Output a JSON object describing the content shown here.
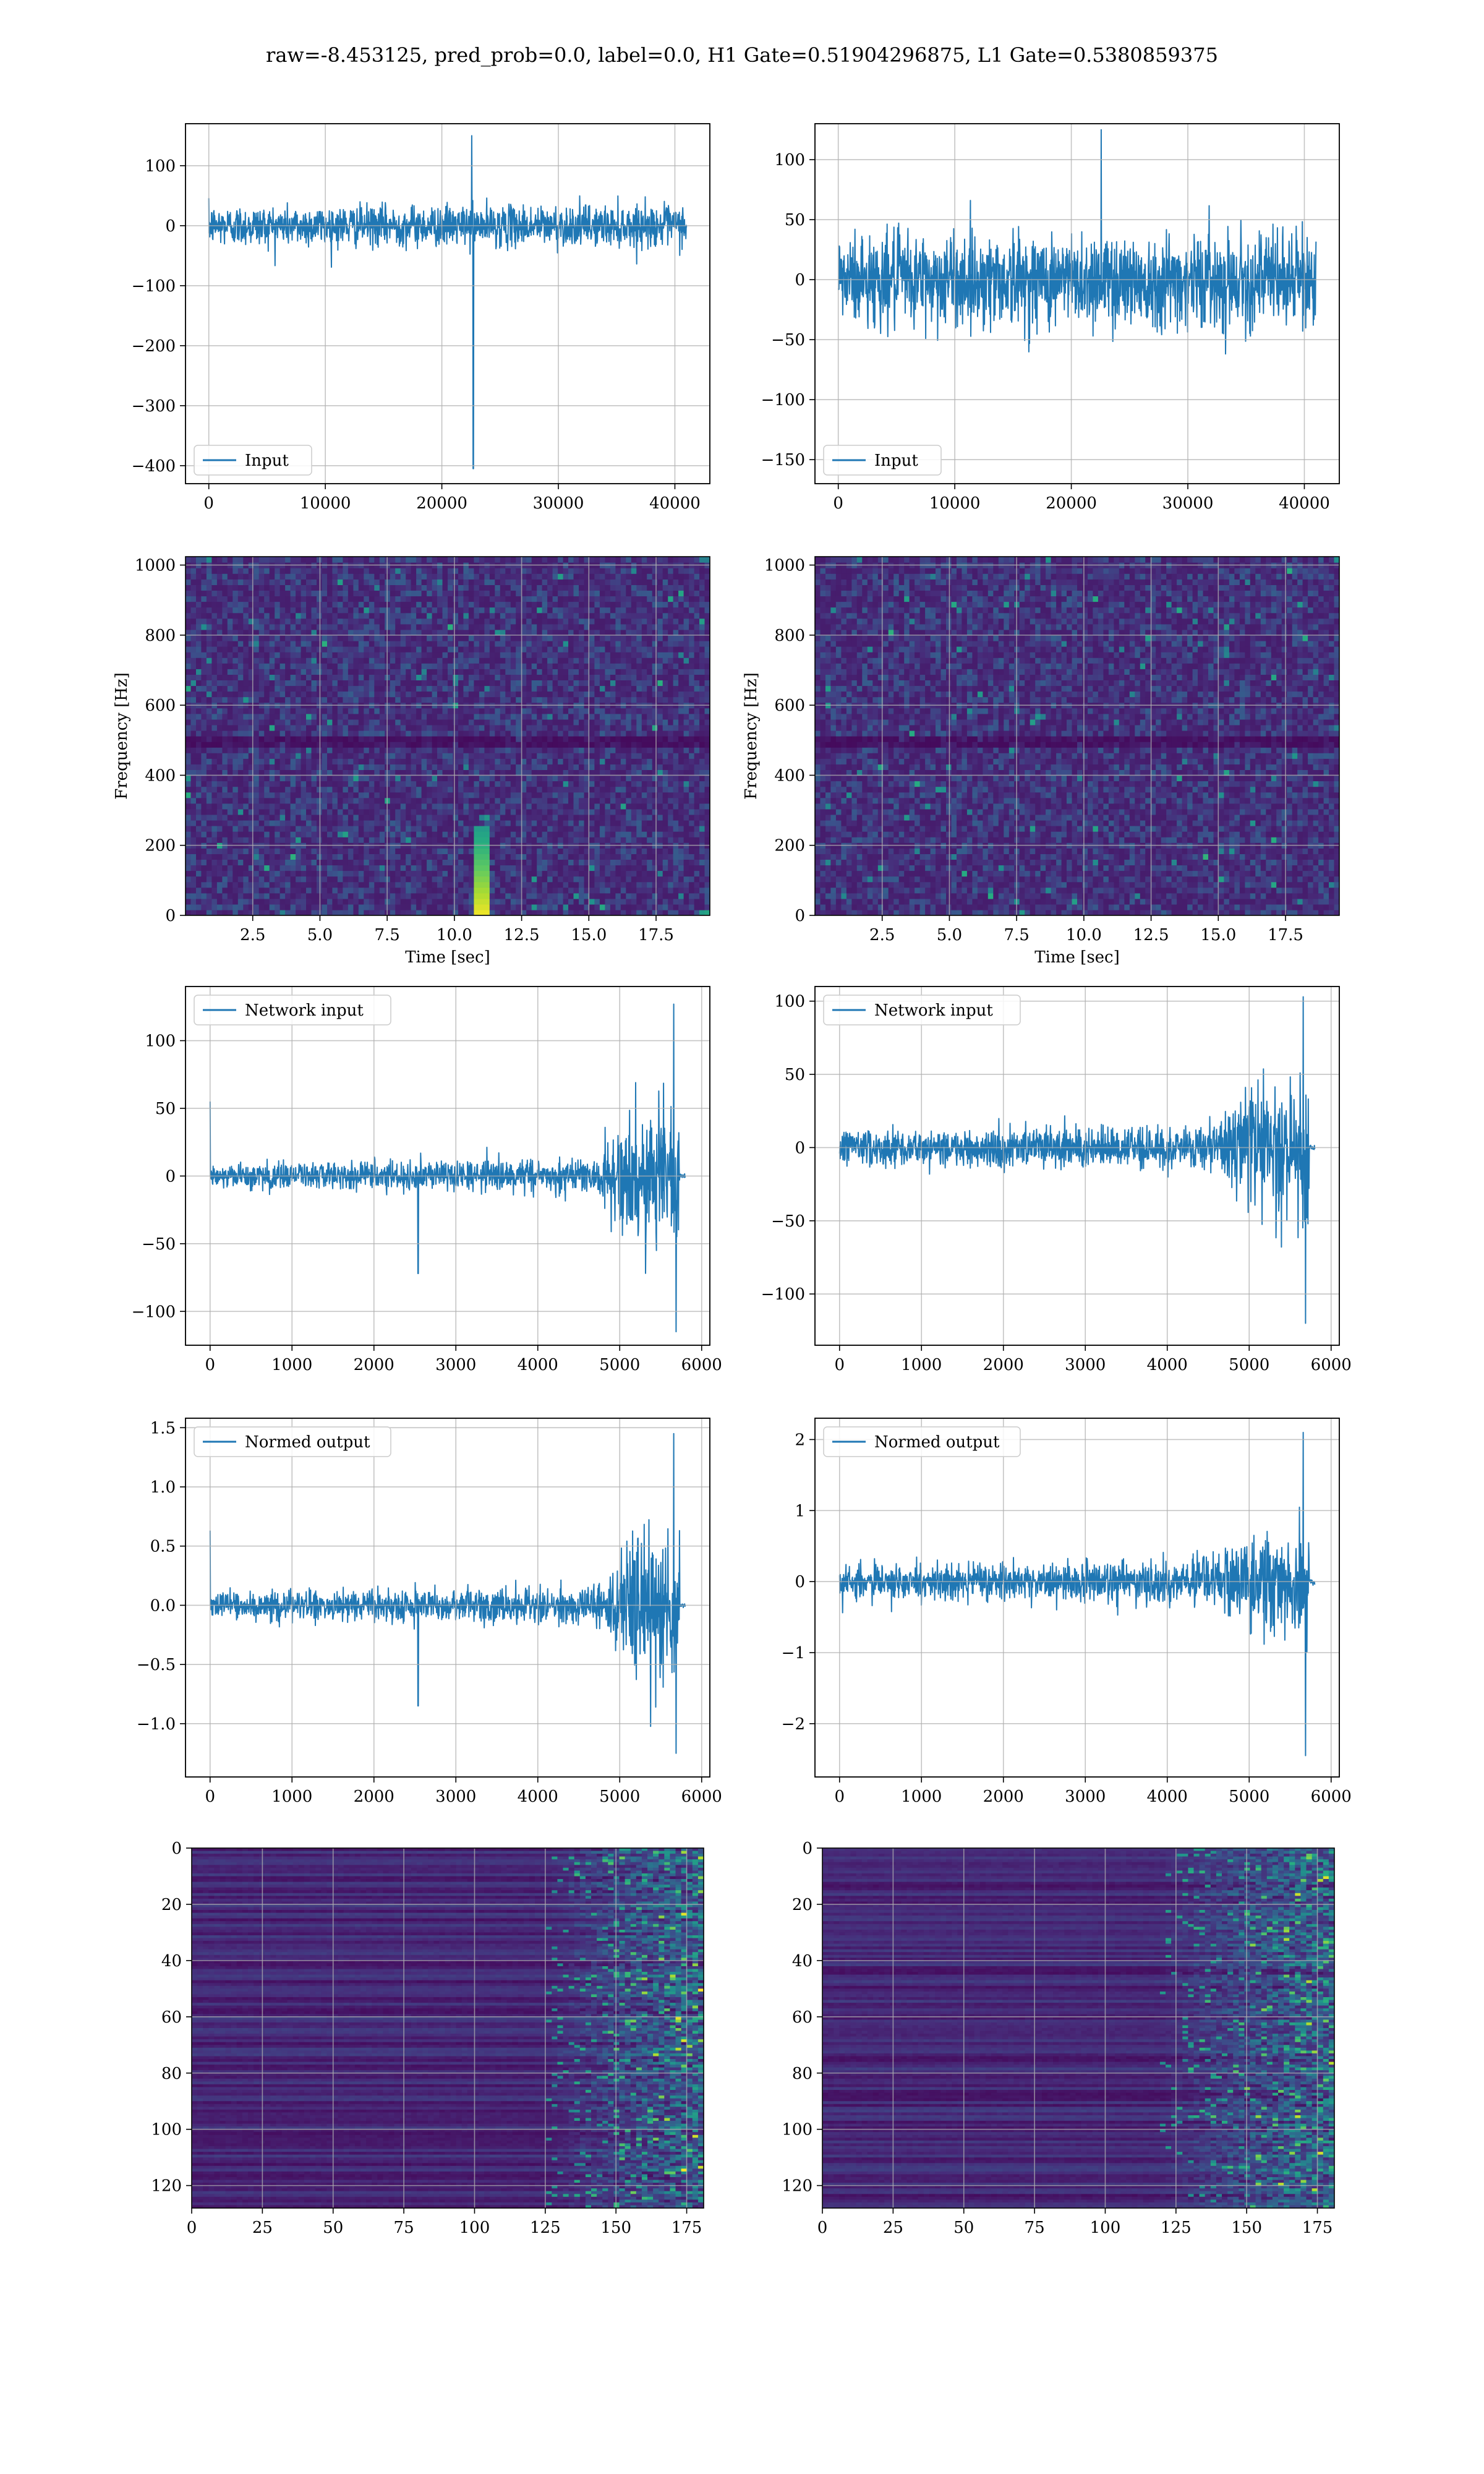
{
  "figure": {
    "suptitle": "raw=-8.453125, pred_prob=0.0, label=0.0, H1 Gate=0.51904296875, L1 Gate=0.5380859375"
  },
  "colors": {
    "line": "#1f77b4",
    "grid": "#b0b0b0",
    "viridis": [
      "#440154",
      "#472c7a",
      "#3b518b",
      "#2c718e",
      "#21908d",
      "#27ad81",
      "#5cc863",
      "#aadc32",
      "#fde725"
    ]
  },
  "chart_data": [
    {
      "id": "h1-input",
      "type": "line",
      "legend": "Input",
      "xlim": [
        -2000,
        43000
      ],
      "ylim": [
        -430,
        170
      ],
      "xticks": [
        0,
        10000,
        20000,
        30000,
        40000
      ],
      "yticks": [
        100,
        0,
        -100,
        -200,
        -300,
        -400
      ],
      "grid": true,
      "legend_loc": "lower-left",
      "signal": {
        "x_range": [
          0,
          41000
        ],
        "amplitude": 30,
        "peak": 150,
        "glitch_x": 22700,
        "glitch_y": -405
      }
    },
    {
      "id": "l1-input",
      "type": "line",
      "legend": "Input",
      "xlim": [
        -2000,
        43000
      ],
      "ylim": [
        -170,
        130
      ],
      "xticks": [
        0,
        10000,
        20000,
        30000,
        40000
      ],
      "yticks": [
        100,
        50,
        0,
        -50,
        -100,
        -150
      ],
      "grid": true,
      "legend_loc": "lower-left",
      "signal": {
        "x_range": [
          0,
          41000
        ],
        "amplitude": 35,
        "peak": 125
      }
    },
    {
      "id": "h1-spectrogram",
      "type": "heatmap",
      "xlim": [
        0,
        19.5
      ],
      "ylim": [
        0,
        1024
      ],
      "xticks": [
        2.5,
        5.0,
        7.5,
        10.0,
        12.5,
        15.0,
        17.5
      ],
      "yticks": [
        0,
        200,
        400,
        600,
        800,
        1000
      ],
      "xtick_labels": [
        "2.5",
        "5.0",
        "7.5",
        "10.0",
        "12.5",
        "15.0",
        "17.5"
      ],
      "xlabel": "Time [sec]",
      "ylabel": "Frequency [Hz]",
      "grid": true,
      "features": {
        "glitch_time": 11.0,
        "glitch_fmax": 260,
        "dark_band_hz": 500
      }
    },
    {
      "id": "l1-spectrogram",
      "type": "heatmap",
      "xlim": [
        0,
        19.5
      ],
      "ylim": [
        0,
        1024
      ],
      "xticks": [
        2.5,
        5.0,
        7.5,
        10.0,
        12.5,
        15.0,
        17.5
      ],
      "yticks": [
        0,
        200,
        400,
        600,
        800,
        1000
      ],
      "xtick_labels": [
        "2.5",
        "5.0",
        "7.5",
        "10.0",
        "12.5",
        "15.0",
        "17.5"
      ],
      "xlabel": "Time [sec]",
      "ylabel": "Frequency [Hz]",
      "grid": true,
      "features": {
        "dark_band_hz": 500
      }
    },
    {
      "id": "h1-network-input",
      "type": "line",
      "legend": "Network input",
      "xlim": [
        -300,
        6100
      ],
      "ylim": [
        -125,
        140
      ],
      "xticks": [
        0,
        1000,
        2000,
        3000,
        4000,
        5000,
        6000
      ],
      "yticks": [
        100,
        50,
        0,
        -50,
        -100
      ],
      "grid": true,
      "legend_loc": "upper-left",
      "signal": {
        "x_range": [
          0,
          5800
        ],
        "base_amplitude": 8,
        "burst_start": 4700,
        "burst_end": 5730,
        "burst_amplitude": 45,
        "peak_pos": 127,
        "peak_neg": -115,
        "spike_x": 2540,
        "spike_y": -72,
        "start_spike": 55
      }
    },
    {
      "id": "l1-network-input",
      "type": "line",
      "legend": "Network input",
      "xlim": [
        -300,
        6100
      ],
      "ylim": [
        -135,
        110
      ],
      "xticks": [
        0,
        1000,
        2000,
        3000,
        4000,
        5000,
        6000
      ],
      "yticks": [
        100,
        50,
        0,
        -50,
        -100
      ],
      "grid": true,
      "legend_loc": "upper-left",
      "signal": {
        "x_range": [
          0,
          5800
        ],
        "base_amplitude": 10,
        "burst_start": 4600,
        "burst_end": 5730,
        "burst_amplitude": 40,
        "peak_pos": 103,
        "peak_neg": -120
      }
    },
    {
      "id": "h1-normed-output",
      "type": "line",
      "legend": "Normed output",
      "xlim": [
        -300,
        6100
      ],
      "ylim": [
        -1.45,
        1.58
      ],
      "xticks": [
        0,
        1000,
        2000,
        3000,
        4000,
        5000,
        6000
      ],
      "yticks": [
        1.5,
        1.0,
        0.5,
        0.0,
        -0.5,
        -1.0
      ],
      "ytick_labels": [
        "1.5",
        "1.0",
        "0.5",
        "0.0",
        "−0.5",
        "−1.0"
      ],
      "grid": true,
      "legend_loc": "upper-left",
      "signal": {
        "x_range": [
          0,
          5800
        ],
        "base_amplitude": 0.1,
        "burst_start": 4700,
        "burst_end": 5730,
        "burst_amplitude": 0.5,
        "peak_pos": 1.45,
        "peak_neg": -1.25,
        "spike_x": 2540,
        "spike_y": -0.85,
        "start_spike": 0.63
      }
    },
    {
      "id": "l1-normed-output",
      "type": "line",
      "legend": "Normed output",
      "xlim": [
        -300,
        6100
      ],
      "ylim": [
        -2.75,
        2.3
      ],
      "xticks": [
        0,
        1000,
        2000,
        3000,
        4000,
        5000,
        6000
      ],
      "yticks": [
        2,
        1,
        0,
        -1,
        -2
      ],
      "grid": true,
      "legend_loc": "upper-left",
      "signal": {
        "x_range": [
          0,
          5800
        ],
        "base_amplitude": 0.2,
        "burst_start": 4600,
        "burst_end": 5730,
        "burst_amplitude": 0.75,
        "peak_pos": 2.1,
        "peak_neg": -2.45
      }
    },
    {
      "id": "h1-feature-map",
      "type": "heatmap",
      "xlim": [
        0,
        181
      ],
      "ylim": [
        128,
        0
      ],
      "xticks": [
        0,
        25,
        50,
        75,
        100,
        125,
        150,
        175
      ],
      "yticks": [
        0,
        20,
        40,
        60,
        80,
        100,
        120
      ],
      "grid": true,
      "features": {
        "activity_onset": 125
      }
    },
    {
      "id": "l1-feature-map",
      "type": "heatmap",
      "xlim": [
        0,
        181
      ],
      "ylim": [
        128,
        0
      ],
      "xticks": [
        0,
        25,
        50,
        75,
        100,
        125,
        150,
        175
      ],
      "yticks": [
        0,
        20,
        40,
        60,
        80,
        100,
        120
      ],
      "grid": true,
      "features": {
        "activity_onset": 118
      }
    }
  ]
}
